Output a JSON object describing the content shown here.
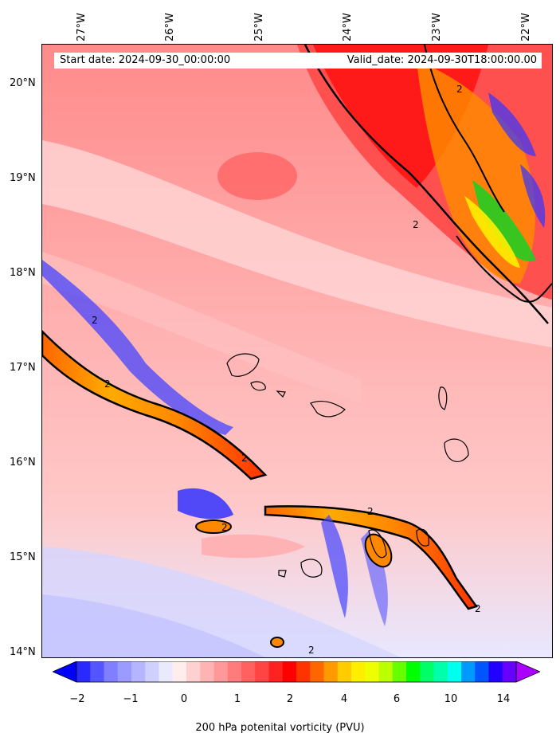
{
  "header": {
    "start_date": "Start date: 2024-09-30_00:00:00",
    "valid_date": "Valid_date: 2024-09-30T18:00:00.00"
  },
  "axes": {
    "longitude_labels": [
      "27°W",
      "26°W",
      "25°W",
      "24°W",
      "23°W",
      "22°W"
    ],
    "latitude_labels": [
      "20°N",
      "19°N",
      "18°N",
      "17°N",
      "16°N",
      "15°N",
      "14°N"
    ]
  },
  "contour_label": "2",
  "colorbar": {
    "title": "200 hPa potenital vorticity (PVU)",
    "tick_labels": [
      "−2",
      "−1",
      "0",
      "1",
      "2",
      "4",
      "6",
      "10",
      "14"
    ],
    "colors": [
      "#0000ff",
      "#2a2aff",
      "#5555ff",
      "#7f7fff",
      "#9a9aff",
      "#b5b5ff",
      "#d0d0ff",
      "#eaeaff",
      "#ffecec",
      "#ffd0d0",
      "#ffb4b4",
      "#ff9898",
      "#ff7c7c",
      "#ff6060",
      "#ff4444",
      "#ff2222",
      "#ff0000",
      "#ff3300",
      "#ff6600",
      "#ff9900",
      "#ffcc00",
      "#ffee00",
      "#eeff00",
      "#bbff00",
      "#66ff00",
      "#00ff00",
      "#00ff66",
      "#00ffaa",
      "#00ffee",
      "#0099ff",
      "#0055ff",
      "#2200ff",
      "#6600ff",
      "#aa00ff"
    ]
  },
  "colors": {
    "background_pv": "#ff9c9c",
    "land_outline": "#000000"
  }
}
